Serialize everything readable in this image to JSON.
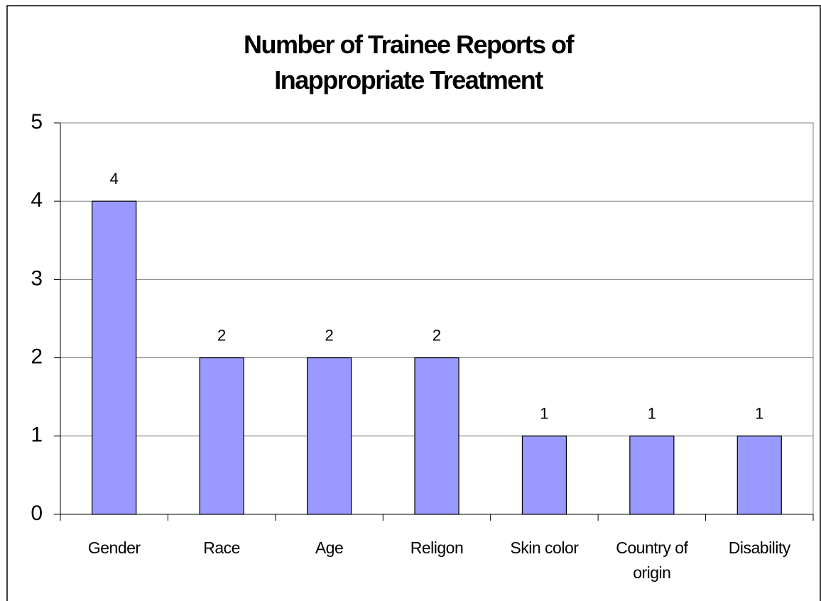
{
  "chart_data": {
    "type": "bar",
    "title": "Number of Trainee Reports of Inappropriate Treatment",
    "categories": [
      "Gender",
      "Race",
      "Age",
      "Religon",
      "Skin color",
      "Country of origin",
      "Disability"
    ],
    "values": [
      4,
      2,
      2,
      2,
      1,
      1,
      1
    ],
    "color": "#9999ff",
    "ylim": [
      0,
      5
    ],
    "yticks": [
      0,
      1,
      2,
      3,
      4,
      5
    ],
    "grid": true
  }
}
